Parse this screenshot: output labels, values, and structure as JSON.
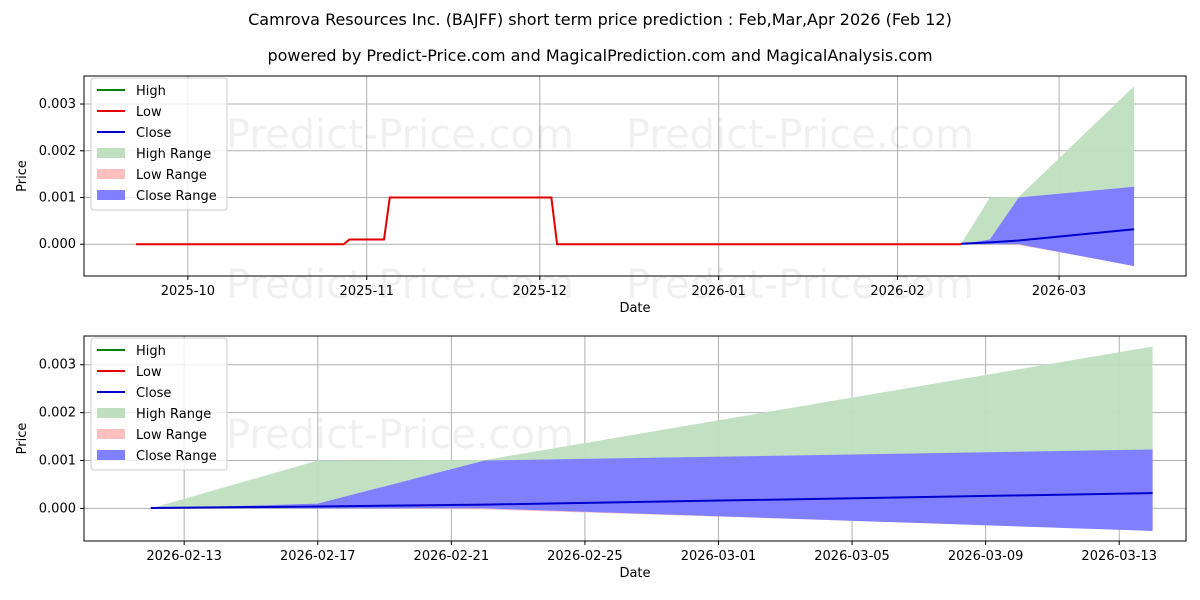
{
  "title": "Camrova Resources Inc. (BAJFF) short term price prediction : Feb,Mar,Apr 2026 (Feb 12)",
  "subtitle": "powered by Predict-Price.com and MagicalPrediction.com and MagicalAnalysis.com",
  "watermark": "Predict-Price.com",
  "colors": {
    "high": "#008000",
    "low": "#e00000",
    "close": "#0000cc",
    "high_range": "#bfdfbf",
    "low_range": "#ffbfbf",
    "close_range": "#8080ff"
  },
  "chart_data": [
    {
      "type": "line",
      "xlabel": "Date",
      "ylabel": "Price",
      "ylim": [
        -0.00068,
        0.0036
      ],
      "xlim": [
        "2025-09-13",
        "2026-03-23"
      ],
      "yticks": [
        "0.000",
        "0.001",
        "0.002",
        "0.003"
      ],
      "ytick_values": [
        0,
        0.001,
        0.002,
        0.003
      ],
      "xticks": [
        "2025-10",
        "2025-11",
        "2025-12",
        "2026-01",
        "2026-02",
        "2026-03"
      ],
      "xtick_dates": [
        "2025-10-01",
        "2025-11-01",
        "2025-12-01",
        "2026-01-01",
        "2026-02-01",
        "2026-03-01"
      ],
      "legend": [
        "High",
        "Low",
        "Close",
        "High Range",
        "Low Range",
        "Close Range"
      ],
      "legend_position": "upper-left",
      "grid": true,
      "history": {
        "dates": [
          "2025-09-22",
          "2025-10-28",
          "2025-10-29",
          "2025-11-04",
          "2025-11-05",
          "2025-12-03",
          "2025-12-04",
          "2026-02-12"
        ],
        "low": [
          0,
          0,
          0.0001,
          0.0001,
          0.001,
          0.001,
          0,
          0
        ]
      }
    },
    {
      "type": "line",
      "xlabel": "Date",
      "ylabel": "Price",
      "ylim": [
        -0.00068,
        0.0036
      ],
      "xlim": [
        "2026-02-10",
        "2026-03-15"
      ],
      "yticks": [
        "0.000",
        "0.001",
        "0.002",
        "0.003"
      ],
      "ytick_values": [
        0,
        0.001,
        0.002,
        0.003
      ],
      "xticks": [
        "2026-02-13",
        "2026-02-17",
        "2026-02-21",
        "2026-02-25",
        "2026-03-01",
        "2026-03-05",
        "2026-03-09",
        "2026-03-13"
      ],
      "xtick_dates": [
        "2026-02-13",
        "2026-02-17",
        "2026-02-21",
        "2026-02-25",
        "2026-03-01",
        "2026-03-05",
        "2026-03-09",
        "2026-03-13"
      ],
      "legend": [
        "High",
        "Low",
        "Close",
        "High Range",
        "Low Range",
        "Close Range"
      ],
      "legend_position": "upper-left",
      "grid": true
    }
  ],
  "forecast": {
    "dates": [
      "2026-02-12",
      "2026-02-17",
      "2026-02-22",
      "2026-03-14"
    ],
    "high_upper": [
      0,
      0.001,
      0.00101,
      0.00338
    ],
    "high_lower": [
      0,
      0,
      0,
      0
    ],
    "low_upper": [
      0,
      0,
      0,
      0
    ],
    "low_lower": [
      0,
      0,
      -2e-05,
      -0.00045
    ],
    "close_upper": [
      0,
      0.0001,
      0.001,
      0.00123
    ],
    "close_lower": [
      0,
      0,
      0,
      -0.00047
    ],
    "close": [
      1e-05,
      4e-05,
      8e-05,
      0.00032
    ]
  }
}
